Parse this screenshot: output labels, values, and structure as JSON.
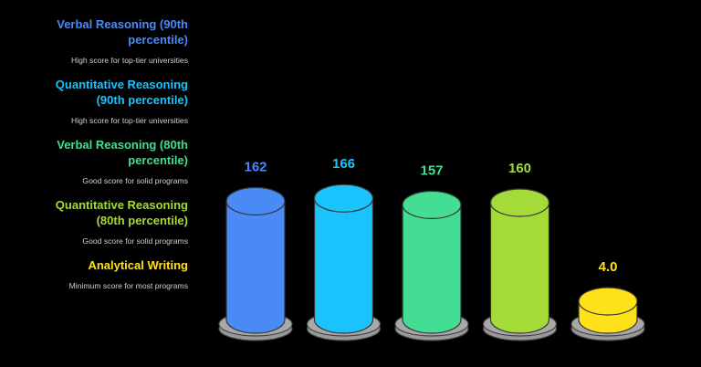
{
  "chart_data": {
    "type": "bar",
    "style": "3d-cylinder",
    "categories": [
      "Verbal Reasoning (90th percentile)",
      "Quantitative Reasoning (90th percentile)",
      "Verbal Reasoning (80th percentile)",
      "Quantitative Reasoning (80th percentile)",
      "Analytical Writing"
    ],
    "values": [
      162,
      166,
      157,
      160,
      4.0
    ],
    "value_labels": [
      "162",
      "166",
      "157",
      "160",
      "4.0"
    ],
    "descriptions": [
      "High score for top-tier universities",
      "High score for top-tier universities",
      "Good score for solid programs",
      "Good score for solid programs",
      "Minimum score for most programs"
    ],
    "colors": [
      "#4a8af4",
      "#1ac3fb",
      "#43dd93",
      "#a4db38",
      "#ffe21a"
    ],
    "legend_position": "left",
    "grid": false
  }
}
